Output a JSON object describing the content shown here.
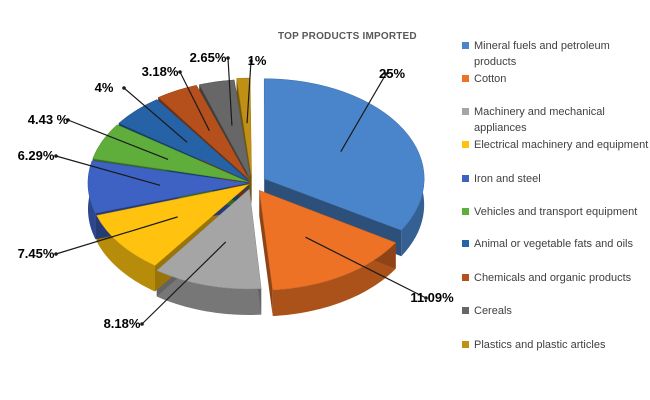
{
  "chart_data": {
    "type": "pie",
    "title": "TOP PRODUCTS IMPORTED",
    "legend_position": "right",
    "slices": [
      {
        "name": "Mineral fuels and petroleum products",
        "value": 25,
        "label": "25%",
        "color": "#4a85cc"
      },
      {
        "name": "Cotton",
        "value": 11.09,
        "label": "11.09%",
        "color": "#ed7226"
      },
      {
        "name": "Machinery and mechanical appliances",
        "value": 8.18,
        "label": "8.18%",
        "color": "#a5a5a5"
      },
      {
        "name": "Electrical machinery and equipment",
        "value": 7.45,
        "label": "7.45%",
        "color": "#ffc20f"
      },
      {
        "name": "Iron and steel",
        "value": 6.29,
        "label": "6.29%",
        "color": "#3d62c4"
      },
      {
        "name": "Vehicles and transport equipment",
        "value": 4.43,
        "label": "4.43 %",
        "color": "#5fae3c"
      },
      {
        "name": "Animal or vegetable fats and oils",
        "value": 4,
        "label": "4%",
        "color": "#2563a6"
      },
      {
        "name": "Chemicals and organic products",
        "value": 3.18,
        "label": "3.18%",
        "color": "#b5501c"
      },
      {
        "name": "Cereals",
        "value": 2.65,
        "label": "2.65%",
        "color": "#676767"
      },
      {
        "name": "Plastics and plastic articles",
        "value": 1,
        "label": "1%",
        "color": "#c09014"
      }
    ]
  }
}
